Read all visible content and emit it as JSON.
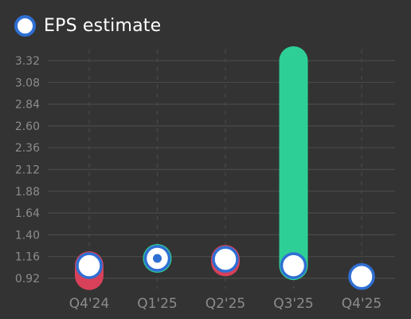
{
  "legend": {
    "label": "EPS estimate"
  },
  "colors": {
    "background": "#333333",
    "beat": "#2ecf96",
    "miss": "#d7415a",
    "marker_fill": "#ffffff",
    "marker_border": "#2f6fd3",
    "grid": "#4a4a4a",
    "tick_text": "#8c8c8c"
  },
  "chart_data": {
    "type": "scatter",
    "categories": [
      "Q4'24",
      "Q1'25",
      "Q2'25",
      "Q3'25",
      "Q4'25"
    ],
    "yticks": [
      "0.92",
      "1.16",
      "1.40",
      "1.64",
      "1.88",
      "2.12",
      "2.36",
      "2.60",
      "2.84",
      "3.08",
      "3.32"
    ],
    "ylim": [
      0.92,
      3.32
    ],
    "grid": true,
    "legend_position": "top-left",
    "series": [
      {
        "name": "EPS estimate",
        "values": [
          1.06,
          1.14,
          1.13,
          1.06,
          0.94
        ]
      },
      {
        "values": [
          0.95,
          1.14,
          1.1,
          3.32,
          null
        ]
      }
    ]
  }
}
